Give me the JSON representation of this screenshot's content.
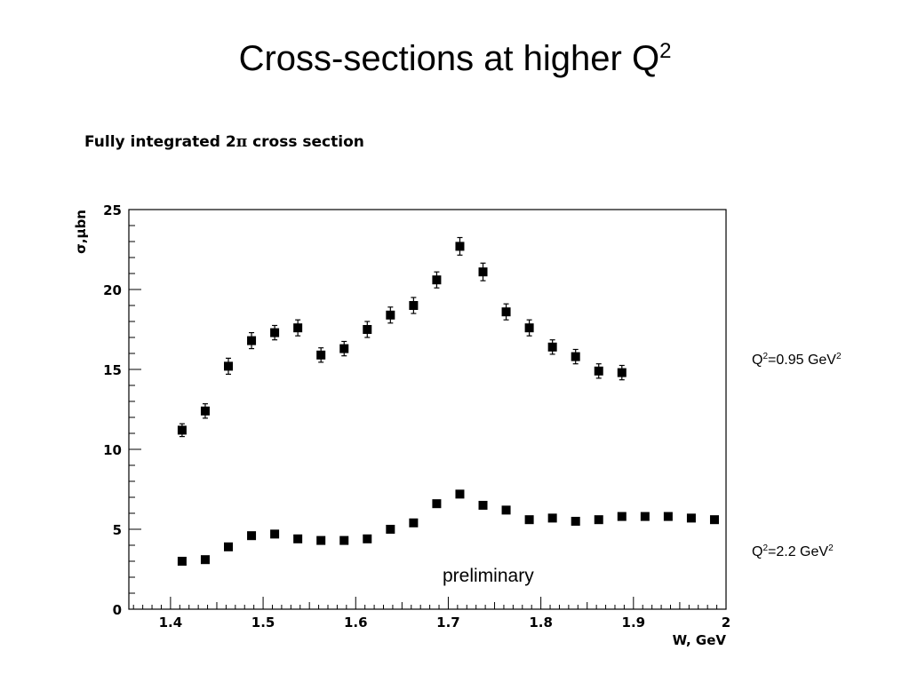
{
  "slide": {
    "title_main": "Cross-sections at higher Q",
    "title_sup": "2"
  },
  "chart_data": {
    "type": "scatter",
    "title_prefix": "Fully integrated 2",
    "title_symbol": "π",
    "title_suffix": " cross section",
    "xlabel": "W, GeV",
    "ylabel": "σ,μbn",
    "xlim": [
      1.355,
      2.0
    ],
    "ylim": [
      0,
      25
    ],
    "x_ticks": [
      1.4,
      1.5,
      1.6,
      1.7,
      1.8,
      1.9,
      2
    ],
    "x_tick_labels": [
      "1.4",
      "1.5",
      "1.6",
      "1.7",
      "1.8",
      "1.9",
      "2"
    ],
    "y_ticks": [
      0,
      5,
      10,
      15,
      20,
      25
    ],
    "y_tick_labels": [
      "0",
      "5",
      "10",
      "15",
      "20",
      "25"
    ],
    "grid": false,
    "annotation": "preliminary",
    "series": [
      {
        "label_base": "Q",
        "label_sup1": "2",
        "label_mid": "=0.95 GeV",
        "label_sup2": "2",
        "marker": "square",
        "color": "#000000",
        "x": [
          1.4125,
          1.4375,
          1.4625,
          1.4875,
          1.5125,
          1.5375,
          1.5625,
          1.5875,
          1.6125,
          1.6375,
          1.6625,
          1.6875,
          1.7125,
          1.7375,
          1.7625,
          1.7875,
          1.8125,
          1.8375,
          1.8625,
          1.8875
        ],
        "y": [
          11.2,
          12.4,
          15.2,
          16.8,
          17.3,
          17.6,
          15.9,
          16.3,
          17.5,
          18.4,
          19.0,
          20.6,
          22.7,
          21.1,
          18.6,
          17.6,
          16.4,
          15.8,
          14.9,
          14.8
        ],
        "err": [
          0.4,
          0.45,
          0.5,
          0.5,
          0.45,
          0.5,
          0.45,
          0.45,
          0.5,
          0.5,
          0.5,
          0.5,
          0.55,
          0.55,
          0.5,
          0.5,
          0.45,
          0.45,
          0.45,
          0.45
        ]
      },
      {
        "label_base": "Q",
        "label_sup1": "2",
        "label_mid": "=2.2 GeV",
        "label_sup2": "2",
        "marker": "square",
        "color": "#000000",
        "x": [
          1.4125,
          1.4375,
          1.4625,
          1.4875,
          1.5125,
          1.5375,
          1.5625,
          1.5875,
          1.6125,
          1.6375,
          1.6625,
          1.6875,
          1.7125,
          1.7375,
          1.7625,
          1.7875,
          1.8125,
          1.8375,
          1.8625,
          1.8875,
          1.9125,
          1.9375,
          1.9625,
          1.9875
        ],
        "y": [
          3.0,
          3.1,
          3.9,
          4.6,
          4.7,
          4.4,
          4.3,
          4.3,
          4.4,
          5.0,
          5.4,
          6.6,
          7.2,
          6.5,
          6.2,
          5.6,
          5.7,
          5.5,
          5.6,
          5.8,
          5.8,
          5.8,
          5.7,
          5.6
        ],
        "err": []
      }
    ]
  }
}
